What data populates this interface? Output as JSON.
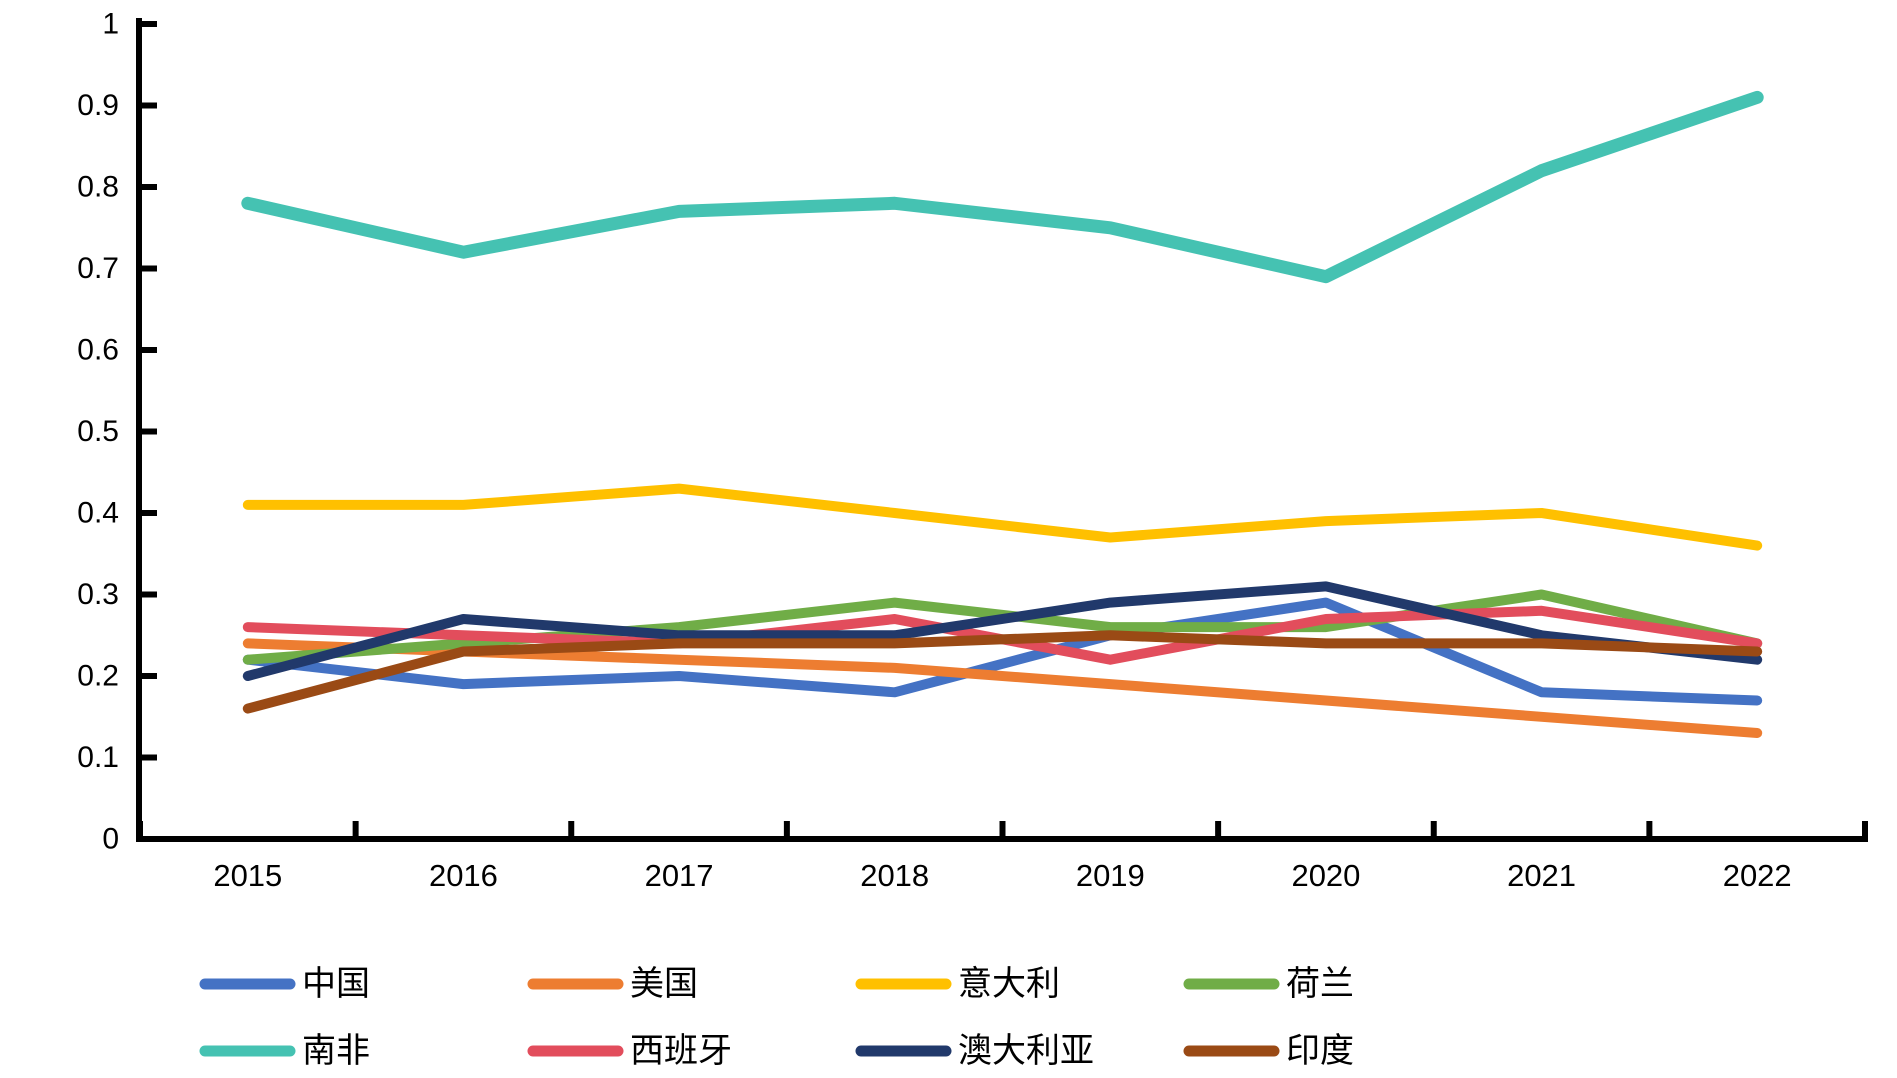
{
  "chart_data": {
    "type": "line",
    "x": [
      "2015",
      "2016",
      "2017",
      "2018",
      "2019",
      "2020",
      "2021",
      "2022"
    ],
    "series": [
      {
        "id": "china",
        "name": "中国",
        "color": "#4472C4",
        "stroke_width": 10,
        "values": [
          0.22,
          0.19,
          0.2,
          0.18,
          0.25,
          0.29,
          0.18,
          0.17
        ]
      },
      {
        "id": "usa",
        "name": "美国",
        "color": "#ED7D31",
        "stroke_width": 10,
        "values": [
          0.24,
          0.23,
          0.22,
          0.21,
          0.19,
          0.17,
          0.15,
          0.13
        ]
      },
      {
        "id": "italy",
        "name": "意大利",
        "color": "#FFC000",
        "stroke_width": 10,
        "values": [
          0.41,
          0.41,
          0.43,
          0.4,
          0.37,
          0.39,
          0.4,
          0.36
        ]
      },
      {
        "id": "netherlands",
        "name": "荷兰",
        "color": "#70AD47",
        "stroke_width": 10,
        "values": [
          0.22,
          0.24,
          0.26,
          0.29,
          0.26,
          0.26,
          0.3,
          0.24
        ]
      },
      {
        "id": "south-africa",
        "name": "南非",
        "color": "#45C2B2",
        "stroke_width": 13,
        "values": [
          0.78,
          0.72,
          0.77,
          0.78,
          0.75,
          0.69,
          0.82,
          0.91
        ]
      },
      {
        "id": "spain",
        "name": "西班牙",
        "color": "#E24D5C",
        "stroke_width": 10,
        "values": [
          0.26,
          0.25,
          0.24,
          0.27,
          0.22,
          0.27,
          0.28,
          0.24
        ]
      },
      {
        "id": "australia",
        "name": "澳大利亚",
        "color": "#21396B",
        "stroke_width": 10,
        "values": [
          0.2,
          0.27,
          0.25,
          0.25,
          0.29,
          0.31,
          0.25,
          0.22
        ]
      },
      {
        "id": "india",
        "name": "印度",
        "color": "#9A4A15",
        "stroke_width": 10,
        "values": [
          0.16,
          0.23,
          0.24,
          0.24,
          0.25,
          0.24,
          0.24,
          0.23
        ]
      }
    ],
    "title": "",
    "xlabel": "",
    "ylabel": "",
    "ylim": [
      0,
      1
    ],
    "ytick_step": 0.1,
    "ytick_labels": [
      "0",
      "0.1",
      "0.2",
      "0.3",
      "0.4",
      "0.5",
      "0.6",
      "0.7",
      "0.8",
      "0.9",
      "1"
    ],
    "grid": false,
    "legend_position": "bottom",
    "axis_color": "#000000",
    "legend_rows": [
      [
        "中国",
        "美国",
        "意大利",
        "荷兰"
      ],
      [
        "南非",
        "西班牙",
        "澳大利亚",
        "印度"
      ]
    ]
  }
}
